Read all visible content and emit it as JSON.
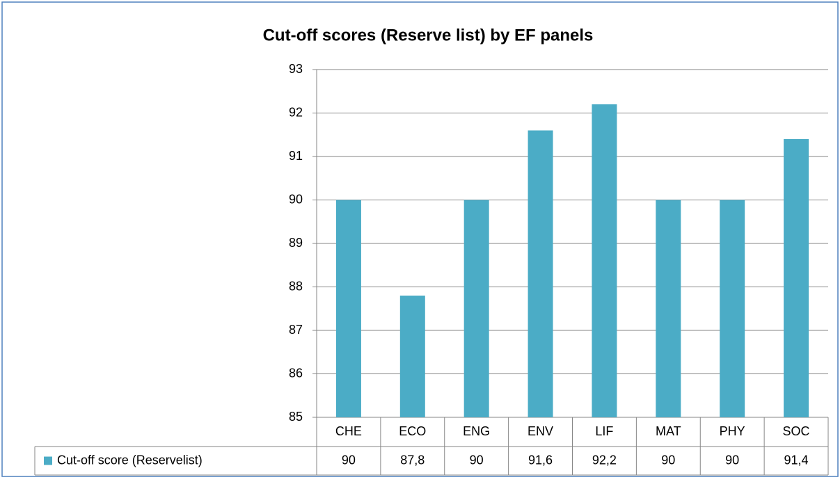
{
  "chart_data": {
    "type": "bar",
    "title": "Cut-off scores (Reserve list) by EF panels",
    "categories": [
      "CHE",
      "ECO",
      "ENG",
      "ENV",
      "LIF",
      "MAT",
      "PHY",
      "SOC"
    ],
    "series": [
      {
        "name": "Cut-off score (Reservelist)",
        "color": "#4bacc6",
        "values": [
          90,
          87.8,
          90,
          91.6,
          92.2,
          90,
          90,
          91.4
        ],
        "value_labels": [
          "90",
          "87,8",
          "90",
          "91,6",
          "92,2",
          "90",
          "90",
          "91,4"
        ]
      }
    ],
    "ylim": [
      85,
      93
    ],
    "yticks": [
      85,
      86,
      87,
      88,
      89,
      90,
      91,
      92,
      93
    ],
    "grid": true,
    "data_table": true
  }
}
